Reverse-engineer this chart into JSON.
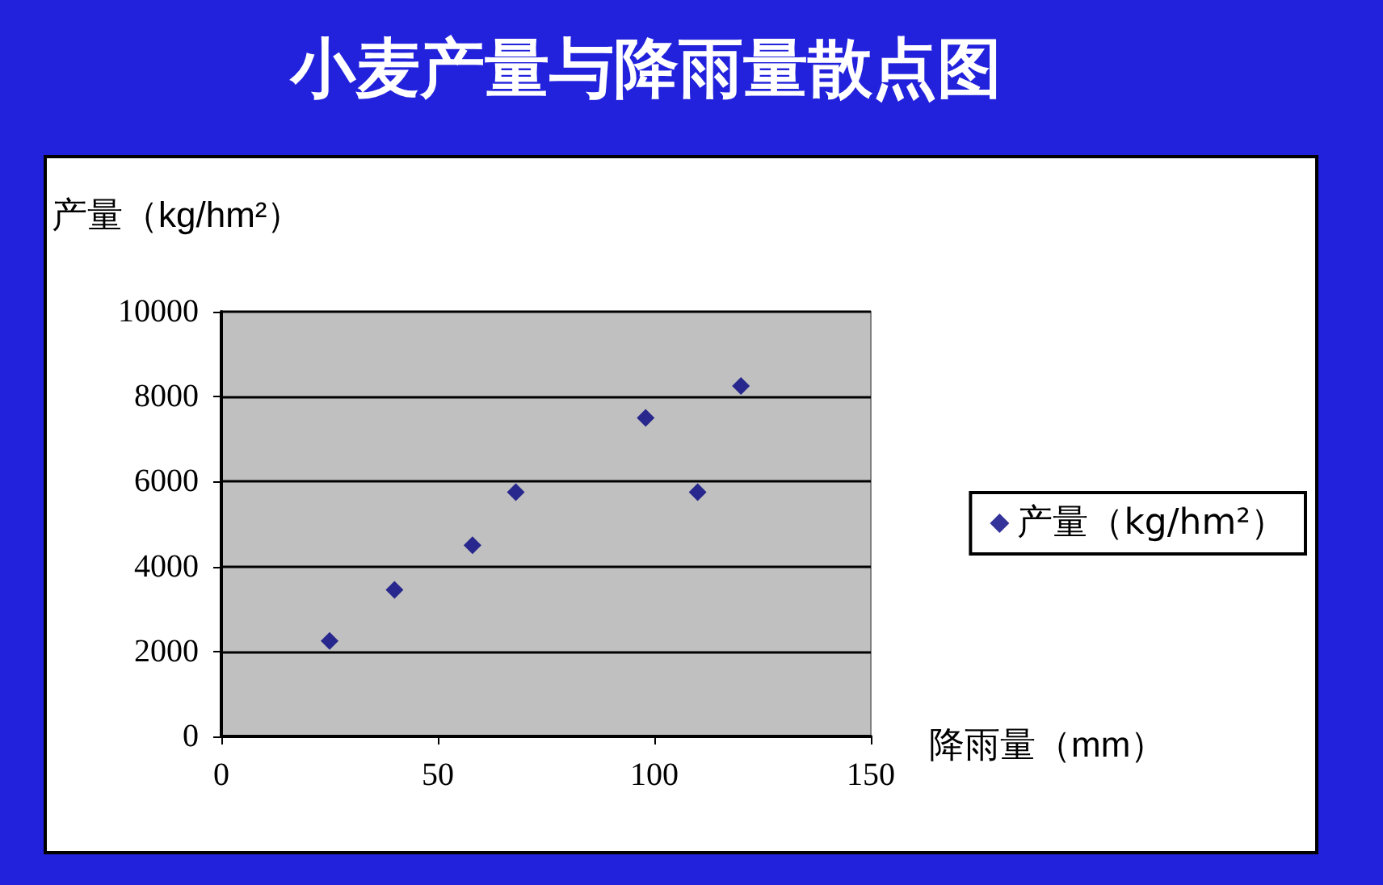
{
  "chart_data": {
    "type": "scatter",
    "title": "小麦产量与降雨量散点图",
    "xlabel": "降雨量（mm）",
    "ylabel": "产量（kg/hm²）",
    "x": [
      25,
      40,
      58,
      68,
      98,
      110,
      120
    ],
    "series": [
      {
        "name": "产量（kg/hm²）",
        "color": "#000080",
        "values": [
          2250,
          3450,
          4500,
          5750,
          7500,
          5750,
          8250
        ]
      }
    ],
    "xlim": [
      0,
      150
    ],
    "xticks": [
      0,
      50,
      100,
      150
    ],
    "ylim": [
      0,
      10000
    ],
    "yticks": [
      0,
      2000,
      4000,
      6000,
      8000,
      10000
    ],
    "grid": "y",
    "legend": "right",
    "marker": "diamond"
  }
}
